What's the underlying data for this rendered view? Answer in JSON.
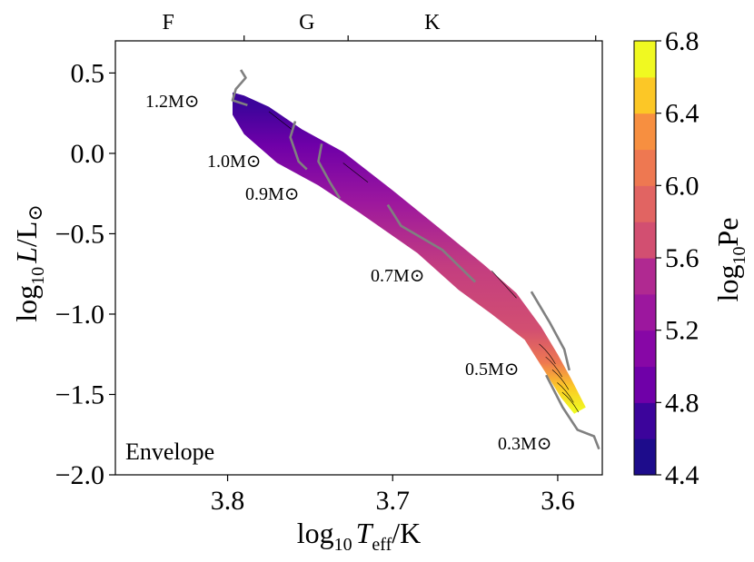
{
  "chart_data": {
    "type": "contour",
    "panel_label": "Envelope",
    "xlabel": "log10 Teff/K",
    "ylabel": "log10 L/L⊙",
    "x_ticks": [
      "3.8",
      "3.7",
      "3.6"
    ],
    "y_ticks": [
      "0.5",
      "0.0",
      "−0.5",
      "−1.0",
      "−1.5",
      "−2.0"
    ],
    "x_tick_values": [
      3.8,
      3.7,
      3.6
    ],
    "y_tick_values": [
      0.5,
      0.0,
      -0.5,
      -1.0,
      -1.5,
      -2.0
    ],
    "xlim": [
      3.868,
      3.573
    ],
    "ylim": [
      -2.0,
      0.7
    ],
    "top_axis_labels": [
      "F",
      "G",
      "K"
    ],
    "spectral_positions": [
      3.836,
      3.752,
      3.676
    ],
    "spectral_boundaries": [
      3.79,
      3.727,
      3.577
    ],
    "colorbar": {
      "label": "log10Pe",
      "min": 4.4,
      "max": 6.8,
      "tick_labels": [
        "6.8",
        "6.4",
        "6.0",
        "5.6",
        "5.2",
        "4.8",
        "4.4"
      ],
      "tick_values": [
        6.8,
        6.4,
        6.0,
        5.6,
        5.2,
        4.8,
        4.4
      ],
      "levels": [
        4.4,
        4.6,
        4.8,
        5.0,
        5.2,
        5.4,
        5.6,
        5.8,
        6.0,
        6.2,
        6.4,
        6.6,
        6.8
      ],
      "colors": [
        "#1d0c8b",
        "#3c049b",
        "#5702a5",
        "#6f00a8",
        "#8707a6",
        "#9c179e",
        "#b02991",
        "#c33d80",
        "#d24f71",
        "#e16462",
        "#ee7851",
        "#f78f40",
        "#fca934",
        "#fcc726",
        "#f0f921"
      ]
    },
    "band": {
      "upper_edge": [
        [
          3.797,
          0.38
        ],
        [
          3.79,
          0.36
        ],
        [
          3.775,
          0.29
        ],
        [
          3.755,
          0.15
        ],
        [
          3.73,
          0.01
        ],
        [
          3.7,
          -0.23
        ],
        [
          3.67,
          -0.48
        ],
        [
          3.645,
          -0.69
        ],
        [
          3.625,
          -0.87
        ],
        [
          3.61,
          -1.08
        ],
        [
          3.6,
          -1.25
        ],
        [
          3.592,
          -1.4
        ],
        [
          3.583,
          -1.58
        ]
      ],
      "lower_edge": [
        [
          3.59,
          -1.62
        ],
        [
          3.598,
          -1.52
        ],
        [
          3.607,
          -1.37
        ],
        [
          3.62,
          -1.16
        ],
        [
          3.64,
          -1.0
        ],
        [
          3.66,
          -0.85
        ],
        [
          3.685,
          -0.62
        ],
        [
          3.72,
          -0.37
        ],
        [
          3.745,
          -0.2
        ],
        [
          3.77,
          -0.06
        ],
        [
          3.79,
          0.12
        ],
        [
          3.797,
          0.24
        ]
      ],
      "shading": [
        {
          "lum": 0.3,
          "value": 4.6
        },
        {
          "lum": 0.05,
          "value": 5.0
        },
        {
          "lum": -0.3,
          "value": 5.3
        },
        {
          "lum": -0.7,
          "value": 5.6
        },
        {
          "lum": -1.1,
          "value": 5.8
        },
        {
          "lum": -1.3,
          "value": 6.1
        },
        {
          "lum": -1.45,
          "value": 6.5
        },
        {
          "lum": -1.6,
          "value": 6.8
        }
      ]
    },
    "tracks": [
      {
        "label": "1.2M⊙",
        "mass": 1.2,
        "points": [
          [
            3.792,
            0.52
          ],
          [
            3.789,
            0.47
          ],
          [
            3.795,
            0.4
          ],
          [
            3.797,
            0.33
          ],
          [
            3.788,
            0.3
          ]
        ]
      },
      {
        "label": "1.0M⊙",
        "mass": 1.0,
        "points": [
          [
            3.759,
            0.2
          ],
          [
            3.762,
            0.1
          ],
          [
            3.757,
            -0.05
          ],
          [
            3.752,
            -0.1
          ]
        ]
      },
      {
        "label": "0.9M⊙",
        "mass": 0.9,
        "points": [
          [
            3.743,
            0.06
          ],
          [
            3.745,
            -0.05
          ],
          [
            3.738,
            -0.18
          ],
          [
            3.732,
            -0.28
          ]
        ]
      },
      {
        "label": "0.7M⊙",
        "mass": 0.7,
        "points": [
          [
            3.703,
            -0.32
          ],
          [
            3.695,
            -0.45
          ],
          [
            3.67,
            -0.6
          ],
          [
            3.65,
            -0.8
          ]
        ]
      },
      {
        "label": "0.5M⊙",
        "mass": 0.5,
        "points": [
          [
            3.616,
            -0.86
          ],
          [
            3.605,
            -1.05
          ],
          [
            3.596,
            -1.22
          ],
          [
            3.593,
            -1.35
          ]
        ]
      },
      {
        "label": "0.3M⊙",
        "mass": 0.3,
        "points": [
          [
            3.607,
            -1.38
          ],
          [
            3.597,
            -1.58
          ],
          [
            3.588,
            -1.72
          ],
          [
            3.578,
            -1.76
          ],
          [
            3.575,
            -1.84
          ]
        ]
      }
    ]
  }
}
